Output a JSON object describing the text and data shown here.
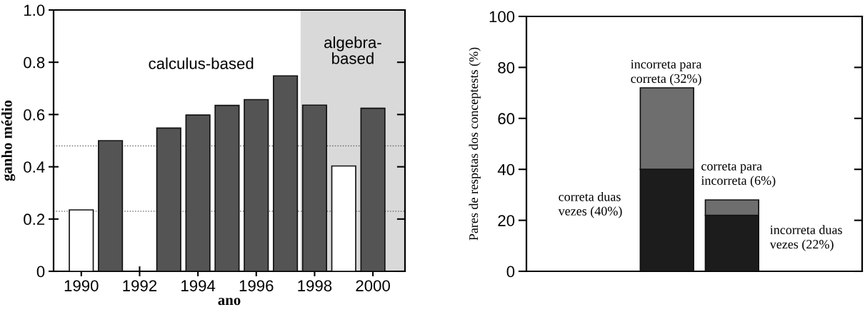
{
  "chart_data": [
    {
      "type": "bar",
      "xlabel": "ano",
      "ylabel": "ganho médio",
      "x": [
        1990,
        1991,
        1993,
        1994,
        1995,
        1996,
        1997,
        1998,
        1999,
        2000
      ],
      "values": [
        0.235,
        0.5,
        0.548,
        0.598,
        0.635,
        0.657,
        0.748,
        0.636,
        0.403,
        0.624
      ],
      "colors": [
        "#ffffff",
        "#545454",
        "#545454",
        "#545454",
        "#545454",
        "#545454",
        "#545454",
        "#545454",
        "#ffffff",
        "#545454"
      ],
      "xlim": [
        1989.05,
        2001.1
      ],
      "ylim": [
        0,
        1.0
      ],
      "xticks": [
        1990,
        1992,
        1994,
        1996,
        1998,
        2000
      ],
      "yticks": [
        0,
        {
          "value": 0.2,
          "label": "0.2"
        },
        {
          "value": 0.4,
          "label": "0.4"
        },
        {
          "value": 0.6,
          "label": "0.6"
        },
        {
          "value": 0.8,
          "label": "0.8"
        },
        {
          "value": 1.0,
          "label": "1.0"
        }
      ],
      "ref_lines": [
        {
          "axis": "y",
          "value": 0.48,
          "color": "#555555",
          "line_style": "dotted"
        },
        {
          "axis": "y",
          "value": 0.23,
          "color": "#555555",
          "line_style": "dotted"
        }
      ],
      "bands": [
        {
          "axis": "x",
          "from": 1997.52,
          "to": 2001.1,
          "label": "algebra-\nbased",
          "color": "#d9d9d9"
        }
      ],
      "annotations": [
        "calculus-based"
      ],
      "grid": false
    },
    {
      "type": "bar",
      "stacked": true,
      "ylabel": "Pares de respstas dos conceptests (%)",
      "categories": [
        null,
        null
      ],
      "series": [
        {
          "color": "#1c1c1c",
          "values": [
            40,
            22
          ]
        },
        {
          "color": "#6e6e6e",
          "values": [
            32,
            6
          ]
        }
      ],
      "ylim": [
        0,
        100
      ],
      "yticks": [
        0,
        20,
        40,
        60,
        80,
        100
      ],
      "annotations": [
        "correta duas\nvezes (40%)",
        "incorreta para\ncorreta (32%)",
        "correta para\nincorreta (6%)",
        "incorreta duas\nvezes (22%)"
      ],
      "grid": false
    }
  ]
}
